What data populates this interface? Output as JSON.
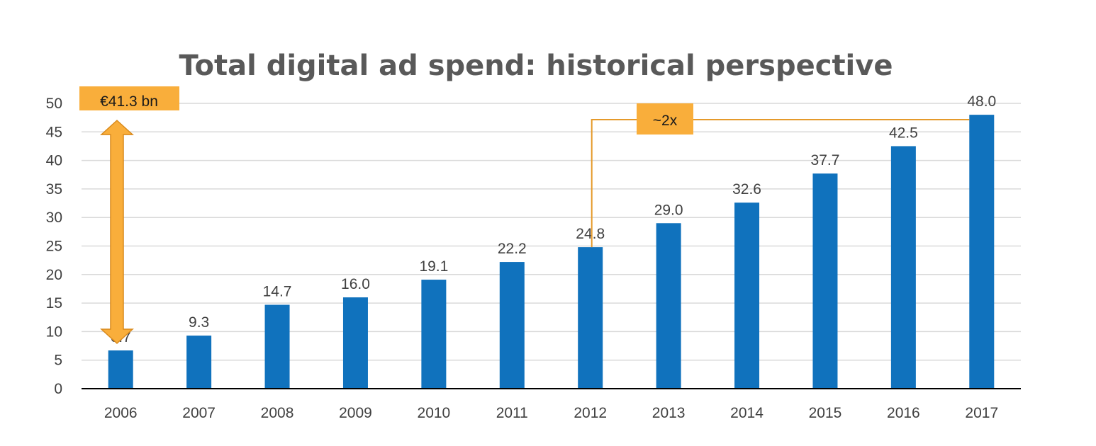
{
  "chart_data": {
    "type": "bar",
    "title": "Total digital ad spend: historical perspective",
    "xlabel": "",
    "ylabel": "",
    "categories": [
      "2006",
      "2007",
      "2008",
      "2009",
      "2010",
      "2011",
      "2012",
      "2013",
      "2014",
      "2015",
      "2016",
      "2017"
    ],
    "values": [
      6.7,
      9.3,
      14.7,
      16.0,
      19.1,
      22.2,
      24.8,
      29.0,
      32.6,
      37.7,
      42.5,
      48.0
    ],
    "value_labels": [
      "6.7",
      "9.3",
      "14.7",
      "16.0",
      "19.1",
      "22.2",
      "24.8",
      "29.0",
      "32.6",
      "37.7",
      "42.5",
      "48.0"
    ],
    "ylim": [
      0,
      50
    ],
    "yticks": [
      "0",
      "5",
      "10",
      "15",
      "20",
      "25",
      "30",
      "35",
      "40",
      "45",
      "50"
    ],
    "grid": true,
    "legend": "none",
    "annotations": {
      "difference_label": "€41.3 bn",
      "growth_label": "~2x"
    }
  },
  "colors": {
    "bar": "#1072BD",
    "accent": "#F9AE3B",
    "accent_stroke": "#D98A1C",
    "bracket_line": "#E59A2B",
    "grid": "#D9D9D9",
    "axis": "#000000"
  }
}
